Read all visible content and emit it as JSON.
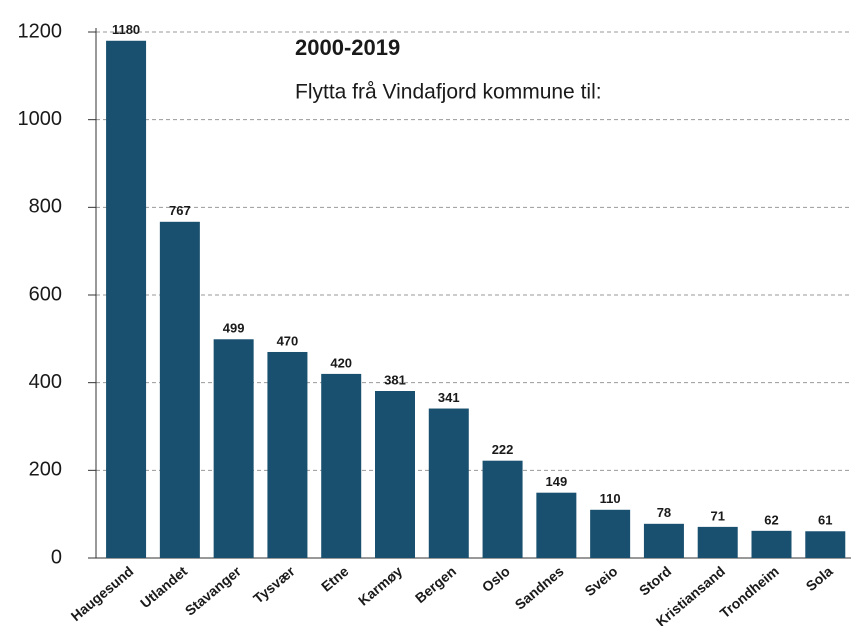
{
  "chart_data": {
    "type": "bar",
    "title": "2000-2019",
    "subtitle": "Flytta frå Vindafjord kommune til:",
    "categories": [
      "Haugesund",
      "Utlandet",
      "Stavanger",
      "Tysvær",
      "Etne",
      "Karmøy",
      "Bergen",
      "Oslo",
      "Sandnes",
      "Sveio",
      "Stord",
      "Kristiansand",
      "Trondheim",
      "Sola"
    ],
    "values": [
      1180,
      767,
      499,
      470,
      420,
      381,
      341,
      222,
      149,
      110,
      78,
      71,
      62,
      61
    ],
    "color": "#19506f",
    "ylim": [
      0,
      1200
    ],
    "yticks": [
      0,
      200,
      400,
      600,
      800,
      1000,
      1200
    ],
    "grid": true
  }
}
